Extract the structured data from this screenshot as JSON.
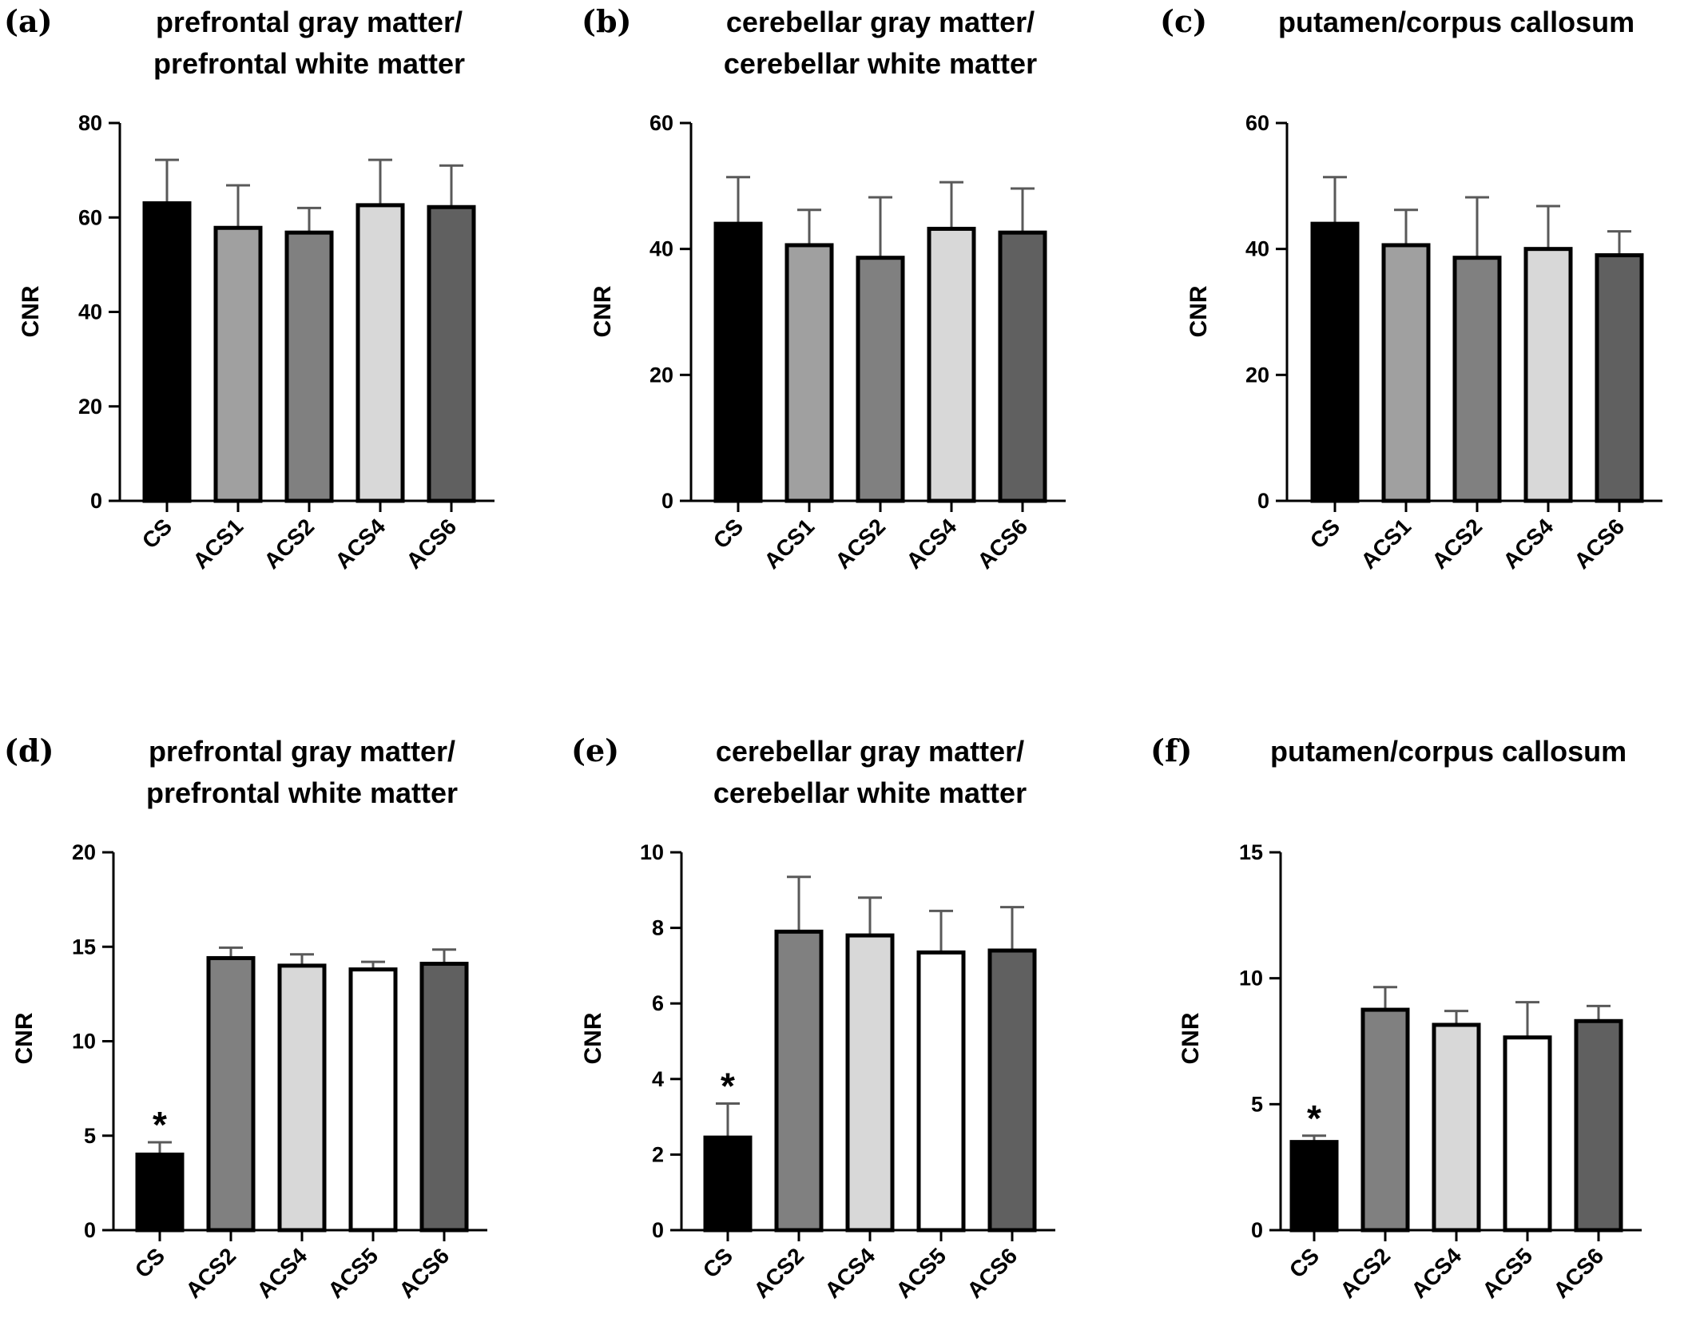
{
  "colors": {
    "CS": "#000000",
    "ACS1": "#a0a0a0",
    "ACS2": "#808080",
    "ACS4": "#d8d8d8",
    "ACS5": "#ffffff",
    "ACS6": "#606060",
    "error_bar": "#595959",
    "outline": "#000000"
  },
  "chart_data": [
    {
      "panel": "(a)",
      "type": "bar",
      "title": [
        "prefrontal gray matter/",
        "prefrontal white matter"
      ],
      "ylabel": "CNR",
      "ylim": [
        0,
        80
      ],
      "yticks": [
        0,
        20,
        40,
        60,
        80
      ],
      "categories": [
        "CS",
        "ACS1",
        "ACS2",
        "ACS4",
        "ACS6"
      ],
      "values": [
        63,
        57.8,
        56.8,
        62.6,
        62.2
      ],
      "errors": [
        9.2,
        9,
        5.2,
        9.6,
        8.8
      ]
    },
    {
      "panel": "(b)",
      "type": "bar",
      "title": [
        "cerebellar gray matter/",
        "cerebellar white matter"
      ],
      "ylabel": "CNR",
      "ylim": [
        0,
        60
      ],
      "yticks": [
        0,
        20,
        40,
        60
      ],
      "categories": [
        "CS",
        "ACS1",
        "ACS2",
        "ACS4",
        "ACS6"
      ],
      "values": [
        44,
        40.6,
        38.6,
        43.2,
        42.6
      ],
      "errors": [
        7.4,
        5.6,
        9.6,
        7.4,
        7
      ]
    },
    {
      "panel": "(c)",
      "type": "bar",
      "title": [
        "putamen/corpus callosum"
      ],
      "ylabel": "CNR",
      "ylim": [
        0,
        60
      ],
      "yticks": [
        0,
        20,
        40,
        60
      ],
      "categories": [
        "CS",
        "ACS1",
        "ACS2",
        "ACS4",
        "ACS6"
      ],
      "values": [
        44,
        40.6,
        38.6,
        40,
        39
      ],
      "errors": [
        7.4,
        5.6,
        9.6,
        6.8,
        3.8
      ]
    },
    {
      "panel": "(d)",
      "type": "bar",
      "title": [
        "prefrontal gray matter/",
        "prefrontal white matter"
      ],
      "ylabel": "CNR",
      "ylim": [
        0,
        20
      ],
      "yticks": [
        0,
        5,
        10,
        15,
        20
      ],
      "categories": [
        "CS",
        "ACS2",
        "ACS4",
        "ACS5",
        "ACS6"
      ],
      "values": [
        4,
        14.4,
        14,
        13.8,
        14.1
      ],
      "errors": [
        0.65,
        0.55,
        0.6,
        0.4,
        0.75
      ],
      "annotation": "*"
    },
    {
      "panel": "(e)",
      "type": "bar",
      "title": [
        "cerebellar gray matter/",
        "cerebellar white matter"
      ],
      "ylabel": "CNR",
      "ylim": [
        0,
        10
      ],
      "yticks": [
        0,
        2,
        4,
        6,
        8,
        10
      ],
      "categories": [
        "CS",
        "ACS2",
        "ACS4",
        "ACS5",
        "ACS6"
      ],
      "values": [
        2.45,
        7.9,
        7.8,
        7.35,
        7.4
      ],
      "errors": [
        0.9,
        1.45,
        1,
        1.1,
        1.15
      ],
      "annotation": "*"
    },
    {
      "panel": "(f)",
      "type": "bar",
      "title": [
        "putamen/corpus callosum"
      ],
      "ylabel": "CNR",
      "ylim": [
        0,
        15
      ],
      "yticks": [
        0,
        5,
        10,
        15
      ],
      "categories": [
        "CS",
        "ACS2",
        "ACS4",
        "ACS5",
        "ACS6"
      ],
      "values": [
        3.5,
        8.75,
        8.15,
        7.65,
        8.3
      ],
      "errors": [
        0.25,
        0.9,
        0.55,
        1.4,
        0.6
      ],
      "annotation": "*"
    }
  ]
}
